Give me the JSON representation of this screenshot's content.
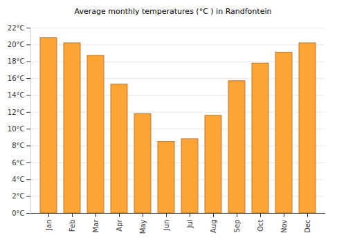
{
  "chart_data": {
    "type": "bar",
    "title": "Average monthly temperatures (°C ) in Randfontein",
    "categories": [
      "Jan",
      "Feb",
      "Mar",
      "Apr",
      "May",
      "Jun",
      "Jul",
      "Aug",
      "Sep",
      "Oct",
      "Nov",
      "Dec"
    ],
    "values": [
      20.8,
      20.2,
      18.7,
      15.3,
      11.8,
      8.5,
      8.8,
      11.6,
      15.7,
      17.8,
      19.1,
      20.2
    ],
    "color": "#fca534",
    "ylim": [
      0,
      22
    ],
    "yticks": [
      {
        "value": 0,
        "label": "0°C"
      },
      {
        "value": 2,
        "label": "2°C"
      },
      {
        "value": 4,
        "label": "4°C"
      },
      {
        "value": 6,
        "label": "6°C"
      },
      {
        "value": 8,
        "label": "8°C"
      },
      {
        "value": 10,
        "label": "10°C"
      },
      {
        "value": 12,
        "label": "12°C"
      },
      {
        "value": 14,
        "label": "14°C"
      },
      {
        "value": 16,
        "label": "16°C"
      },
      {
        "value": 18,
        "label": "18°C"
      },
      {
        "value": 20,
        "label": "20°C"
      },
      {
        "value": 22,
        "label": "22°C"
      }
    ],
    "grid": true
  }
}
